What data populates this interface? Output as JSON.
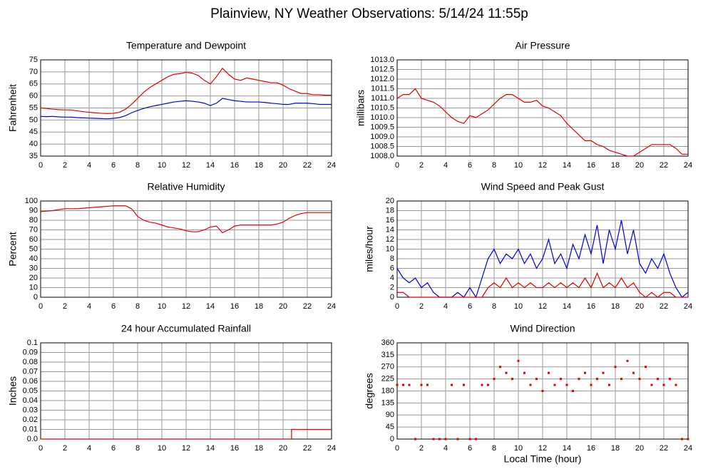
{
  "title": "Plainview, NY Weather Observations: 5/14/24 11:55p",
  "chart_data": [
    {
      "type": "line",
      "title": "Temperature and Dewpoint",
      "ylabel": "Fahrenheit",
      "x": [
        0,
        0.5,
        1,
        1.5,
        2,
        2.5,
        3,
        3.5,
        4,
        4.5,
        5,
        5.5,
        6,
        6.5,
        7,
        7.5,
        8,
        8.5,
        9,
        9.5,
        10,
        10.5,
        11,
        11.5,
        12,
        12.5,
        13,
        13.5,
        14,
        14.5,
        15,
        15.5,
        16,
        16.5,
        17,
        17.5,
        18,
        18.5,
        19,
        19.5,
        20,
        20.5,
        21,
        21.5,
        22,
        22.5,
        23,
        23.5,
        24
      ],
      "series": [
        {
          "color": "#e00000",
          "values": [
            55,
            54.8,
            54.5,
            54.3,
            54.2,
            54.2,
            53.8,
            53.5,
            53.2,
            53,
            52.8,
            52.7,
            52.8,
            53.2,
            54.5,
            56.5,
            59,
            61.5,
            63.5,
            65,
            66.5,
            68,
            69,
            69.3,
            69.8,
            69.5,
            68.5,
            66.5,
            65,
            68,
            71.5,
            69,
            67,
            66.5,
            67.5,
            67,
            66.5,
            66,
            65.5,
            65.5,
            64.5,
            63,
            62,
            61,
            61,
            60.5,
            60.5,
            60.3,
            60.3
          ]
        },
        {
          "color": "#0000e0",
          "values": [
            51.5,
            51.4,
            51.5,
            51.3,
            51.2,
            51.2,
            51,
            50.9,
            50.8,
            50.7,
            50.6,
            50.5,
            50.7,
            51,
            51.8,
            53,
            54,
            54.8,
            55.5,
            56,
            56.5,
            57,
            57.5,
            57.8,
            58,
            57.8,
            57.5,
            57,
            56,
            57,
            59,
            58.5,
            58,
            57.8,
            57.5,
            57.5,
            57.5,
            57.3,
            57,
            56.8,
            56.5,
            56.5,
            57,
            57,
            57,
            56.8,
            56.5,
            56.5,
            56.5
          ]
        }
      ],
      "xlim": [
        0,
        24
      ],
      "xticks": [
        0,
        2,
        4,
        6,
        8,
        10,
        12,
        14,
        16,
        18,
        20,
        22,
        24
      ],
      "ylim": [
        35,
        75
      ],
      "yticks": [
        35,
        40,
        45,
        50,
        55,
        60,
        65,
        70,
        75
      ],
      "grid": true
    },
    {
      "type": "line",
      "title": "Air Pressure",
      "ylabel": "millibars",
      "x": [
        0,
        0.5,
        1,
        1.5,
        2,
        2.5,
        3,
        3.5,
        4,
        4.5,
        5,
        5.5,
        6,
        6.5,
        7,
        7.5,
        8,
        8.5,
        9,
        9.5,
        10,
        10.5,
        11,
        11.5,
        12,
        12.5,
        13,
        13.5,
        14,
        14.5,
        15,
        15.5,
        16,
        16.5,
        17,
        17.5,
        18,
        18.5,
        19,
        19.5,
        20,
        20.5,
        21,
        21.5,
        22,
        22.5,
        23,
        23.5,
        24
      ],
      "series": [
        {
          "color": "#e00000",
          "values": [
            1011.0,
            1011.2,
            1011.2,
            1011.5,
            1011.0,
            1010.9,
            1010.8,
            1010.6,
            1010.3,
            1010.0,
            1009.8,
            1009.7,
            1010.1,
            1010.0,
            1010.2,
            1010.4,
            1010.7,
            1011.0,
            1011.2,
            1011.2,
            1011.0,
            1010.8,
            1010.8,
            1010.9,
            1010.6,
            1010.5,
            1010.3,
            1010.1,
            1009.7,
            1009.4,
            1009.1,
            1008.8,
            1008.8,
            1008.6,
            1008.5,
            1008.3,
            1008.2,
            1008.1,
            1008.0,
            1008.0,
            1008.2,
            1008.4,
            1008.6,
            1008.6,
            1008.6,
            1008.6,
            1008.4,
            1008.1,
            1008.1
          ]
        }
      ],
      "xlim": [
        0,
        24
      ],
      "xticks": [
        0,
        2,
        4,
        6,
        8,
        10,
        12,
        14,
        16,
        18,
        20,
        22,
        24
      ],
      "ylim": [
        1008,
        1013
      ],
      "yticks": [
        {
          "value": 1008,
          "label": "1008.0"
        },
        1008.5,
        {
          "value": 1009,
          "label": "1009.0"
        },
        1009.5,
        {
          "value": 1010,
          "label": "1010.0"
        },
        1010.5,
        {
          "value": 1011,
          "label": "1011.0"
        },
        1011.5,
        {
          "value": 1012,
          "label": "1012.0"
        },
        1012.5,
        {
          "value": 1013,
          "label": "1013.0"
        }
      ],
      "grid": true
    },
    {
      "type": "line",
      "title": "Relative Humidity",
      "ylabel": "Percent",
      "x": [
        0,
        0.5,
        1,
        1.5,
        2,
        2.5,
        3,
        3.5,
        4,
        4.5,
        5,
        5.5,
        6,
        6.5,
        7,
        7.5,
        8,
        8.5,
        9,
        9.5,
        10,
        10.5,
        11,
        11.5,
        12,
        12.5,
        13,
        13.5,
        14,
        14.5,
        15,
        15.5,
        16,
        16.5,
        17,
        17.5,
        18,
        18.5,
        19,
        19.5,
        20,
        20.5,
        21,
        21.5,
        22,
        22.5,
        23,
        23.5,
        24
      ],
      "series": [
        {
          "color": "#e00000",
          "values": [
            89,
            89.5,
            90,
            91,
            92,
            92,
            92,
            92.5,
            93,
            93.5,
            94,
            94.5,
            95,
            95,
            95,
            92,
            84,
            80,
            78,
            77,
            75,
            73,
            72,
            71,
            69,
            68,
            68,
            70,
            73,
            74,
            67,
            70,
            74,
            75,
            75,
            75,
            75,
            75,
            75,
            76,
            78,
            82,
            85,
            87,
            88,
            88,
            88,
            88,
            88
          ]
        }
      ],
      "xlim": [
        0,
        24
      ],
      "xticks": [
        0,
        2,
        4,
        6,
        8,
        10,
        12,
        14,
        16,
        18,
        20,
        22,
        24
      ],
      "ylim": [
        0,
        100
      ],
      "yticks": [
        0,
        10,
        20,
        30,
        40,
        50,
        60,
        70,
        80,
        90,
        100
      ],
      "grid": true
    },
    {
      "type": "line",
      "title": "Wind Speed and Peak Gust",
      "ylabel": "miles/hour",
      "x": [
        0,
        0.5,
        1,
        1.5,
        2,
        2.5,
        3,
        3.5,
        4,
        4.5,
        5,
        5.5,
        6,
        6.5,
        7,
        7.5,
        8,
        8.5,
        9,
        9.5,
        10,
        10.5,
        11,
        11.5,
        12,
        12.5,
        13,
        13.5,
        14,
        14.5,
        15,
        15.5,
        16,
        16.5,
        17,
        17.5,
        18,
        18.5,
        19,
        19.5,
        20,
        20.5,
        21,
        21.5,
        22,
        22.5,
        23,
        23.5,
        24
      ],
      "series": [
        {
          "color": "#0000e0",
          "values": [
            6,
            4,
            3,
            4,
            2,
            3,
            1,
            0,
            0,
            0,
            1,
            0,
            2,
            0,
            4,
            8,
            10,
            7,
            9,
            8,
            10,
            7,
            9,
            6,
            8,
            12,
            7,
            9,
            6,
            11,
            8,
            13,
            9,
            15,
            7,
            14,
            10,
            16,
            9,
            14,
            7,
            5,
            8,
            6,
            9,
            5,
            2,
            0,
            1
          ]
        },
        {
          "color": "#e00000",
          "values": [
            1,
            1,
            0,
            0,
            0,
            0,
            0,
            0,
            0,
            0,
            0,
            0,
            0,
            0,
            0,
            2,
            3,
            2,
            4,
            2,
            3,
            2,
            3,
            2,
            2,
            3,
            2,
            3,
            2,
            3,
            2,
            4,
            2,
            5,
            2,
            3,
            2,
            4,
            2,
            3,
            1,
            0,
            1,
            0,
            1,
            1,
            0,
            0,
            0
          ]
        }
      ],
      "xlim": [
        0,
        24
      ],
      "xticks": [
        0,
        2,
        4,
        6,
        8,
        10,
        12,
        14,
        16,
        18,
        20,
        22,
        24
      ],
      "ylim": [
        0,
        20
      ],
      "yticks": [
        0,
        2,
        4,
        6,
        8,
        10,
        12,
        14,
        16,
        18,
        20
      ],
      "grid": true
    },
    {
      "type": "line",
      "title": "24 hour Accumulated Rainfall",
      "ylabel": "Inches",
      "x": [
        0,
        20.7,
        20.7,
        24
      ],
      "series": [
        {
          "color": "#e00000",
          "values": [
            0,
            0,
            0.01,
            0.01
          ]
        }
      ],
      "xlim": [
        0,
        24
      ],
      "xticks": [
        0,
        2,
        4,
        6,
        8,
        10,
        12,
        14,
        16,
        18,
        20,
        22,
        24
      ],
      "ylim": [
        0,
        0.1
      ],
      "yticks": [
        {
          "value": 0,
          "label": "0.0"
        },
        0.01,
        0.02,
        0.03,
        0.04,
        0.05,
        0.06,
        0.07,
        0.08,
        0.09,
        0.1
      ],
      "grid": true
    },
    {
      "type": "scatter",
      "title": "Wind Direction",
      "ylabel": "degrees",
      "xlabel": "Local Time (hour)",
      "x": [
        0,
        0.5,
        1,
        1.5,
        2,
        2.5,
        3,
        3.5,
        4,
        4.5,
        5,
        5.5,
        6,
        6.5,
        7,
        7.5,
        8,
        8.5,
        9,
        9.5,
        10,
        10.5,
        11,
        11.5,
        12,
        12.5,
        13,
        13.5,
        14,
        14.5,
        15,
        15.5,
        16,
        16.5,
        17,
        17.5,
        18,
        18.5,
        19,
        19.5,
        20,
        20.5,
        21,
        21.5,
        22,
        22.5,
        23,
        23.5,
        24
      ],
      "series": [
        {
          "color": "#e00000",
          "values": [
            202.5,
            202.5,
            202.5,
            0,
            202.5,
            202.5,
            0,
            0,
            0,
            202.5,
            0,
            202.5,
            0,
            0,
            202.5,
            202.5,
            225,
            270,
            247.5,
            225,
            292.5,
            247.5,
            202.5,
            225,
            180,
            247.5,
            202.5,
            225,
            202.5,
            180,
            225,
            247.5,
            202.5,
            225,
            247.5,
            202.5,
            270,
            225,
            292.5,
            247.5,
            225,
            270,
            202.5,
            225,
            202.5,
            225,
            202.5,
            0,
            0
          ]
        }
      ],
      "xlim": [
        0,
        24
      ],
      "xticks": [
        0,
        2,
        4,
        6,
        8,
        10,
        12,
        14,
        16,
        18,
        20,
        22,
        24
      ],
      "ylim": [
        0,
        360
      ],
      "yticks": [
        0,
        45,
        90,
        135,
        180,
        225,
        270,
        315,
        360
      ],
      "grid": true
    }
  ]
}
